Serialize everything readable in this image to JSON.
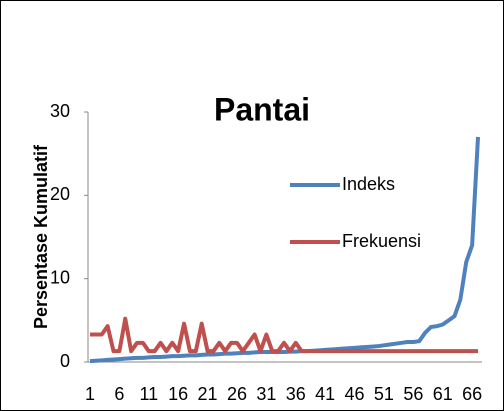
{
  "chart_data": {
    "type": "line",
    "title": "Pantai",
    "y_label": "Persentase Kumulatif",
    "categories": [
      1,
      null,
      null,
      null,
      null,
      6,
      null,
      null,
      null,
      null,
      11,
      null,
      null,
      null,
      null,
      16,
      null,
      null,
      null,
      null,
      21,
      null,
      null,
      null,
      null,
      26,
      null,
      null,
      null,
      null,
      31,
      null,
      null,
      null,
      null,
      36,
      null,
      null,
      null,
      null,
      41,
      null,
      null,
      null,
      null,
      46,
      null,
      null,
      null,
      null,
      51,
      null,
      null,
      null,
      null,
      56,
      null,
      null,
      null,
      null,
      61,
      null,
      null,
      null,
      null,
      66,
      null
    ],
    "series": [
      {
        "name": "Indeks",
        "color": "#4f81bd",
        "values": [
          0.1,
          0.15,
          0.2,
          0.25,
          0.3,
          0.35,
          0.4,
          0.45,
          0.5,
          0.5,
          0.55,
          0.6,
          0.6,
          0.65,
          0.7,
          0.7,
          0.75,
          0.8,
          0.8,
          0.85,
          0.9,
          0.9,
          0.95,
          1,
          1,
          1.05,
          1.1,
          1.1,
          1.15,
          1.2,
          1.2,
          1.2,
          1.2,
          1.2,
          1.25,
          1.25,
          1.3,
          1.3,
          1.35,
          1.4,
          1.45,
          1.5,
          1.55,
          1.6,
          1.65,
          1.7,
          1.75,
          1.8,
          1.85,
          1.9,
          2.0,
          2.1,
          2.2,
          2.3,
          2.4,
          2.4,
          2.5,
          3.5,
          4.2,
          4.3,
          4.5,
          5,
          5.5,
          7.5,
          12,
          14,
          27
        ]
      },
      {
        "name": "Frekuensi",
        "color": "#c0504d",
        "values": [
          3.3,
          3.3,
          3.3,
          4.3,
          1.3,
          1.3,
          5.2,
          1.3,
          2.3,
          2.3,
          1.3,
          1.3,
          2.3,
          1.3,
          2.3,
          1.3,
          4.6,
          1.3,
          1.3,
          4.6,
          1.3,
          1.3,
          2.3,
          1.3,
          2.3,
          2.3,
          1.3,
          2.3,
          3.3,
          1.3,
          3.3,
          1.3,
          1.3,
          2.3,
          1.3,
          2.3,
          1.3,
          1.3,
          1.3,
          1.3,
          1.3,
          1.3,
          1.3,
          1.3,
          1.3,
          1.3,
          1.3,
          1.3,
          1.3,
          1.3,
          1.3,
          1.3,
          1.3,
          1.3,
          1.3,
          1.3,
          1.3,
          1.3,
          1.3,
          1.3,
          1.3,
          1.3,
          1.3,
          1.3,
          1.3,
          1.3,
          1.3
        ]
      }
    ],
    "ylim": [
      0,
      30
    ],
    "yticks": [
      0,
      10,
      20,
      30
    ],
    "grid": false,
    "legend": "right"
  }
}
